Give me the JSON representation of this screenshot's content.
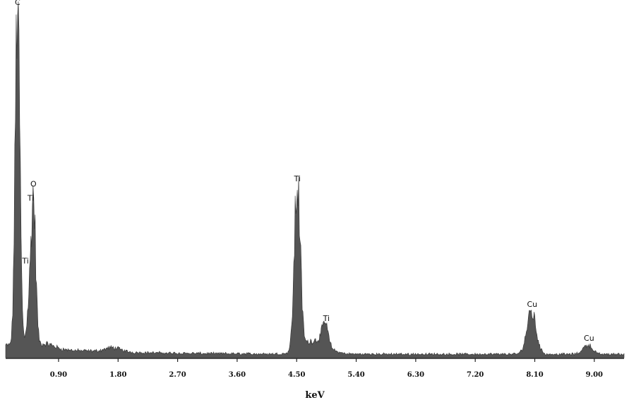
{
  "chart_data": {
    "type": "area",
    "title": "",
    "xlabel": "keV",
    "ylabel": "",
    "xlim": [
      0.1,
      9.45
    ],
    "ylim": [
      0,
      100
    ],
    "xticks": [
      0.9,
      1.8,
      2.7,
      3.6,
      4.5,
      5.4,
      6.3,
      7.2,
      8.1,
      9.0
    ],
    "xtick_labels": [
      "0.90",
      "1.80",
      "2.70",
      "3.60",
      "4.50",
      "5.40",
      "6.30",
      "7.20",
      "8.10",
      "9.00"
    ],
    "grid": false,
    "fill_color": "#555555",
    "peaks": [
      {
        "label": "C",
        "x": 0.28,
        "y": 100
      },
      {
        "label": "O",
        "x": 0.52,
        "y": 42
      },
      {
        "label": "Ti",
        "x": 0.45,
        "y": 10
      },
      {
        "label": "Ti",
        "x": 4.51,
        "y": 48
      },
      {
        "label": "Ti",
        "x": 4.93,
        "y": 6
      },
      {
        "label": "Cu",
        "x": 8.05,
        "y": 12
      },
      {
        "label": "Cu",
        "x": 8.9,
        "y": 2.7
      }
    ],
    "annotations": [
      {
        "text": "C",
        "x": 0.28,
        "y": 101
      },
      {
        "text": "O",
        "x": 0.52,
        "y": 49
      },
      {
        "text": "Ti",
        "x": 0.48,
        "y": 45
      },
      {
        "text": "Ti",
        "x": 0.4,
        "y": 27
      },
      {
        "text": "Ti",
        "x": 4.51,
        "y": 50.5
      },
      {
        "text": "Ti",
        "x": 4.95,
        "y": 10.5
      },
      {
        "text": "Cu",
        "x": 8.06,
        "y": 14.5
      },
      {
        "text": "Cu",
        "x": 8.92,
        "y": 4.8
      }
    ]
  }
}
